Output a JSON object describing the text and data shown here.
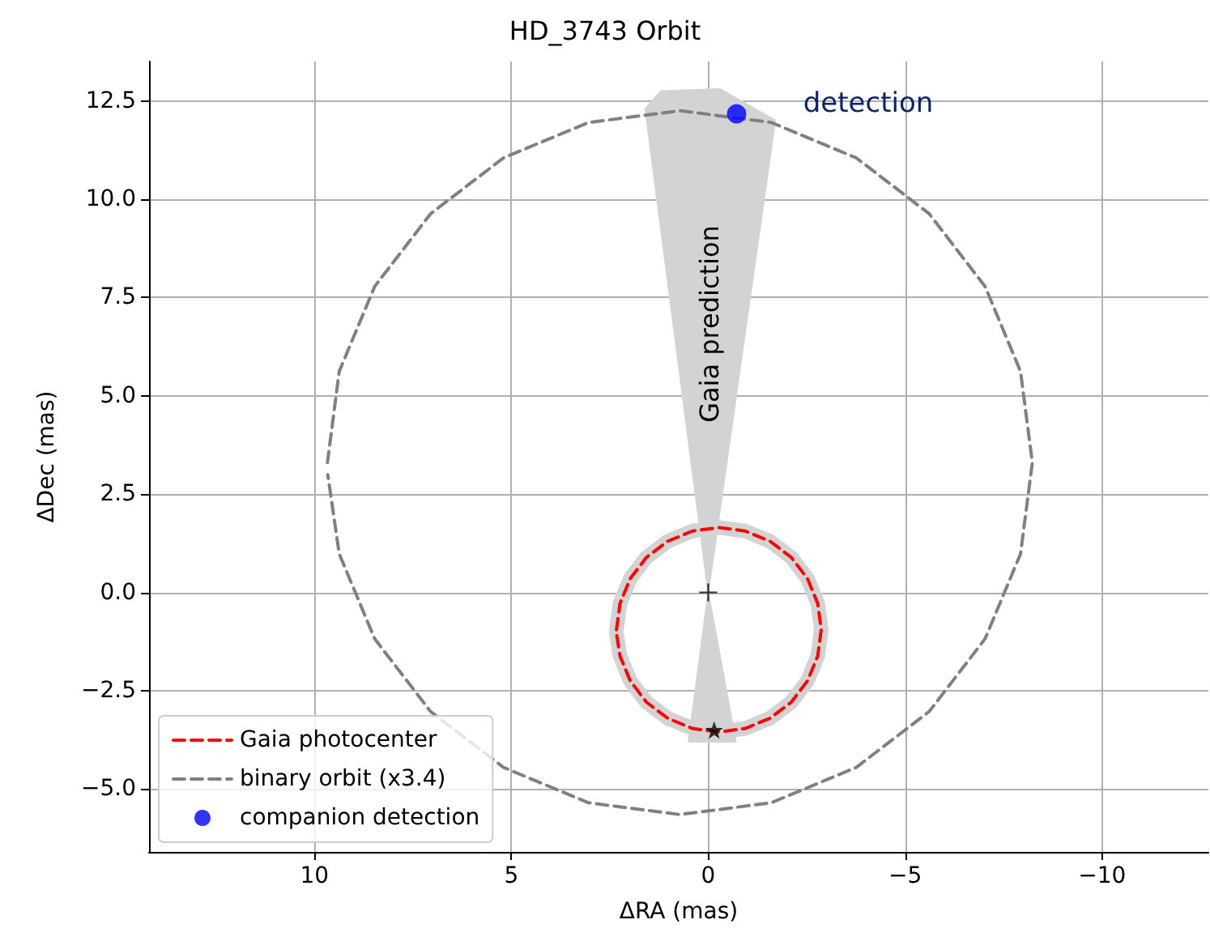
{
  "chart_data": {
    "type": "line",
    "title": "HD_3743 Orbit",
    "xlabel": "ΔRA (mas)",
    "ylabel": "ΔDec (mas)",
    "xlim": [
      14.2,
      -12.7
    ],
    "ylim": [
      -6.6,
      13.5
    ],
    "xticks": [
      10,
      5,
      0,
      {
        "value": -5,
        "label": "−5"
      },
      {
        "value": -10,
        "label": "−10"
      }
    ],
    "yticks": [
      {
        "value": -5,
        "label": "−5.0"
      },
      {
        "value": -2.5,
        "label": "−2.5"
      },
      {
        "value": 0,
        "label": "0.0"
      },
      2.5,
      {
        "value": 5,
        "label": "5.0"
      },
      7.5,
      {
        "value": 10,
        "label": "10.0"
      },
      12.5
    ],
    "grid": true,
    "legend": "bottom left",
    "annotations": [
      "Gaia prediction",
      "detection"
    ],
    "series": [
      {
        "type": "area",
        "color": "#d3d3d3",
        "x": [
          0,
          1.6,
          1.2,
          -0.3,
          -1.7,
          0,
          -0.7,
          0.5,
          0
        ],
        "values": [
          0,
          12.3,
          12.75,
          12.8,
          12.0,
          0,
          -3.8,
          -3.8,
          0
        ]
      },
      {
        "type": "line",
        "color": "#d3d3d3",
        "line_style": "solid",
        "x": [
          2.33,
          2.24,
          1.98,
          1.57,
          1.03,
          0.4,
          -0.27,
          -0.94,
          -1.57,
          -2.11,
          -2.52,
          -2.78,
          -2.87,
          -2.78,
          -2.52,
          -2.11,
          -1.57,
          -0.94,
          -0.27,
          0.4,
          1.03,
          1.57,
          1.98,
          2.24,
          2.33
        ],
        "values": [
          -0.95,
          -0.28,
          0.35,
          0.89,
          1.3,
          1.56,
          1.65,
          1.56,
          1.3,
          0.89,
          0.35,
          -0.28,
          -0.95,
          -1.62,
          -2.25,
          -2.79,
          -3.2,
          -3.46,
          -3.55,
          -3.46,
          -3.2,
          -2.79,
          -2.25,
          -1.62,
          -1.04
        ]
      },
      {
        "type": "line",
        "name": "Gaia photocenter",
        "color": "#ff0000",
        "line_style": "dashed",
        "x": [
          2.33,
          2.24,
          1.98,
          1.57,
          1.03,
          0.4,
          -0.27,
          -0.94,
          -1.57,
          -2.11,
          -2.52,
          -2.78,
          -2.87,
          -2.78,
          -2.52,
          -2.11,
          -1.57,
          -0.94,
          -0.27,
          0.4,
          1.03,
          1.57,
          1.98,
          2.24,
          2.33
        ],
        "values": [
          -0.95,
          -0.28,
          0.35,
          0.89,
          1.3,
          1.56,
          1.65,
          1.56,
          1.3,
          0.89,
          0.35,
          -0.28,
          -0.95,
          -1.62,
          -2.25,
          -2.79,
          -3.2,
          -3.46,
          -3.55,
          -3.46,
          -3.2,
          -2.79,
          -2.25,
          -1.62,
          -1.04
        ]
      },
      {
        "type": "line",
        "name": "binary orbit (x3.4)",
        "color": "#808080",
        "line_style": "dashed",
        "x": [
          9.67,
          9.37,
          8.47,
          7.05,
          5.2,
          3.04,
          0.72,
          -1.6,
          -3.76,
          -5.61,
          -7.03,
          -7.93,
          -8.23,
          -7.93,
          -7.03,
          -5.61,
          -3.76,
          -1.6,
          0.72,
          3.04,
          5.2,
          7.05,
          8.47,
          9.37,
          9.66
        ],
        "values": [
          3.3,
          5.62,
          7.78,
          9.63,
          11.05,
          11.95,
          12.25,
          11.95,
          11.05,
          9.63,
          7.78,
          5.62,
          3.3,
          0.98,
          -1.18,
          -3.03,
          -4.45,
          -5.35,
          -5.65,
          -5.35,
          -4.45,
          -3.03,
          -1.18,
          0.98,
          2.99
        ]
      },
      {
        "type": "scatter",
        "name": "companion detection",
        "color": "#0000ff",
        "marker": "circle",
        "x": [
          -0.72
        ],
        "values": [
          12.17
        ]
      },
      {
        "type": "scatter",
        "color": "#000000",
        "marker": "star",
        "x": [
          -0.15
        ],
        "values": [
          -3.5
        ]
      },
      {
        "type": "scatter",
        "color": "#000000",
        "marker": "cross",
        "x": [
          0
        ],
        "values": [
          0
        ]
      }
    ]
  }
}
